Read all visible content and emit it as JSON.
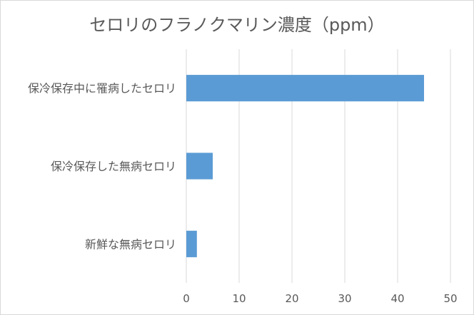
{
  "chart_data": {
    "type": "bar",
    "orientation": "horizontal",
    "title": "セロリのフラノクマリン濃度（ppm）",
    "categories": [
      "保冷保存中に罹病したセロリ",
      "保冷保存した無病セロリ",
      "新鮮な無病セロリ"
    ],
    "values": [
      45,
      5,
      2
    ],
    "xlim": [
      0,
      50
    ],
    "xticks": [
      0,
      10,
      20,
      30,
      40,
      50
    ],
    "grid": true,
    "legend": "none",
    "bar_color": "#5b9bd5",
    "grid_color": "#d9d9d9",
    "text_color": "#595959"
  }
}
